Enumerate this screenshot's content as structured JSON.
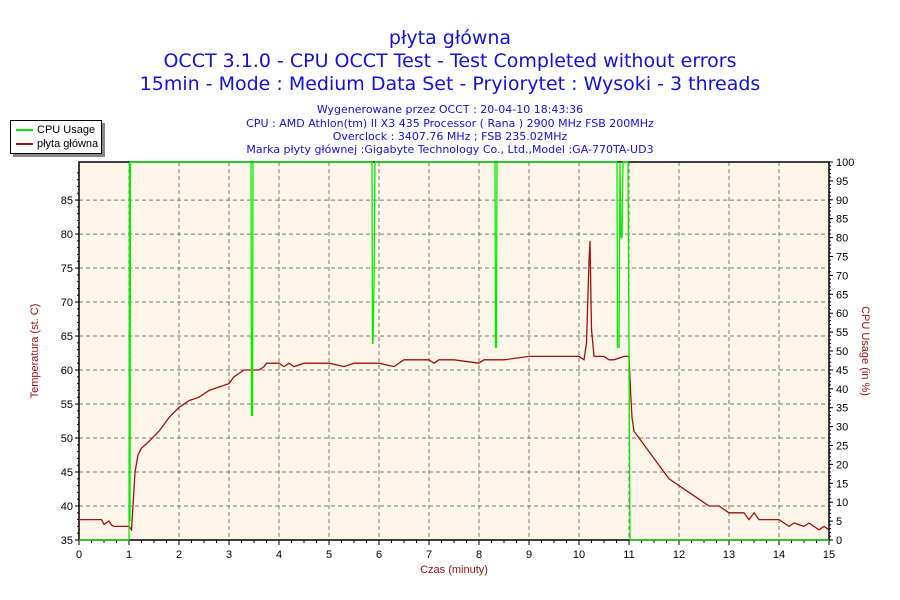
{
  "header": {
    "title": "płyta główna",
    "subtitle": "OCCT 3.1.0 - CPU OCCT Test - Test Completed without errors",
    "subtitle2": "15min - Mode : Medium Data Set - Pryiorytet : Wysoki - 3 threads",
    "info": [
      "Wygenerowane przez OCCT : 20-04-10 18:43:36",
      "CPU : AMD Athlon(tm) II X3 435 Processor ( Rana ) 2900 MHz FSB 200MHz",
      "Overclock : 3407.76 MHz ; FSB 235.02MHz",
      "Marka płyty głównej :Gigabyte Technology Co., Ltd.,Model :GA-770TA-UD3"
    ]
  },
  "colors": {
    "cpu": "#00ee00",
    "temp": "#a01010",
    "plot_bg": "#fdf6e8",
    "title": "#1010e8",
    "axis_label": "#a01010"
  },
  "chart_data": {
    "type": "line",
    "legend": {
      "position": "top-left",
      "entries": [
        "CPU Usage",
        "płyta główna"
      ]
    },
    "xlabel": "Czas (minuty)",
    "ylabel": "Temperatura (st. C)",
    "y2label": "CPU Usage (in %)",
    "xlim": [
      0,
      15
    ],
    "ylim": [
      35,
      90.6
    ],
    "y2lim": [
      0,
      100
    ],
    "xticks": [
      "0",
      "1",
      "2",
      "3",
      "4",
      "5",
      "6",
      "7",
      "8",
      "9",
      "10",
      "11",
      "12",
      "13",
      "14",
      "15"
    ],
    "yticks": [
      "35",
      "40",
      "45",
      "50",
      "55",
      "60",
      "65",
      "70",
      "75",
      "80",
      "85"
    ],
    "y2ticks": [
      "0",
      "5",
      "10",
      "15",
      "20",
      "25",
      "30",
      "35",
      "40",
      "45",
      "50",
      "55",
      "60",
      "65",
      "70",
      "75",
      "80",
      "85",
      "90",
      "95",
      "100"
    ],
    "grid": true,
    "series": [
      {
        "name": "płyta główna",
        "axis": "left",
        "x": [
          0,
          0.45,
          0.5,
          0.6,
          0.65,
          0.7,
          1.0,
          1.05,
          1.08,
          1.12,
          1.18,
          1.25,
          1.4,
          1.6,
          1.8,
          2.0,
          2.2,
          2.4,
          2.6,
          2.8,
          3.0,
          3.1,
          3.3,
          3.6,
          3.7,
          3.75,
          4.0,
          4.1,
          4.2,
          4.3,
          4.5,
          5.0,
          5.3,
          5.5,
          6.0,
          6.3,
          6.5,
          7.0,
          7.1,
          7.2,
          7.5,
          8.0,
          8.1,
          8.5,
          9.0,
          9.5,
          10.0,
          10.1,
          10.15,
          10.2,
          10.22,
          10.25,
          10.3,
          10.5,
          10.6,
          10.7,
          10.9,
          11.0,
          11.03,
          11.06,
          11.1,
          11.2,
          11.3,
          11.4,
          11.6,
          11.8,
          12.0,
          12.2,
          12.3,
          12.4,
          12.6,
          12.8,
          13.0,
          13.3,
          13.4,
          13.5,
          13.6,
          14.0,
          14.2,
          14.3,
          14.5,
          14.6,
          14.8,
          14.9,
          15.0
        ],
        "values": [
          38,
          38,
          37.3,
          37.8,
          37.2,
          37,
          37,
          36.5,
          40,
          45,
          47.5,
          48.5,
          49.5,
          51,
          53,
          54.5,
          55.5,
          56,
          57,
          57.5,
          58,
          59,
          60,
          60,
          60.5,
          61,
          61,
          60.5,
          61,
          60.5,
          61,
          61,
          60.5,
          61,
          61,
          60.5,
          61.5,
          61.5,
          61,
          61.5,
          61.5,
          61,
          61.5,
          61.5,
          62,
          62,
          62,
          61.5,
          64,
          76,
          79,
          66,
          62,
          62,
          61.5,
          61.5,
          62,
          62,
          57,
          53,
          51,
          50,
          49,
          48,
          46,
          44,
          43,
          42,
          41.5,
          41,
          40,
          40,
          39,
          39,
          38,
          39,
          38,
          38,
          37,
          37.5,
          37,
          37.5,
          36.5,
          37,
          36.5
        ]
      },
      {
        "name": "CPU Usage",
        "axis": "right",
        "x": [
          0,
          1.0,
          1.01,
          1.02,
          1.03,
          1.05,
          3.44,
          3.45,
          3.47,
          3.48,
          5.86,
          5.87,
          5.88,
          5.9,
          5.92,
          5.93,
          8.32,
          8.33,
          8.35,
          8.36,
          10.76,
          10.77,
          10.8,
          10.82,
          10.84,
          10.86,
          10.88,
          10.98,
          11.0,
          11.02,
          15.0
        ],
        "values": [
          0,
          0,
          100,
          5,
          100,
          100,
          100,
          33,
          33,
          100,
          100,
          52,
          52,
          67,
          100,
          100,
          100,
          51,
          51,
          100,
          100,
          51,
          51,
          100,
          80,
          80,
          100,
          100,
          50,
          0,
          0
        ]
      }
    ]
  }
}
